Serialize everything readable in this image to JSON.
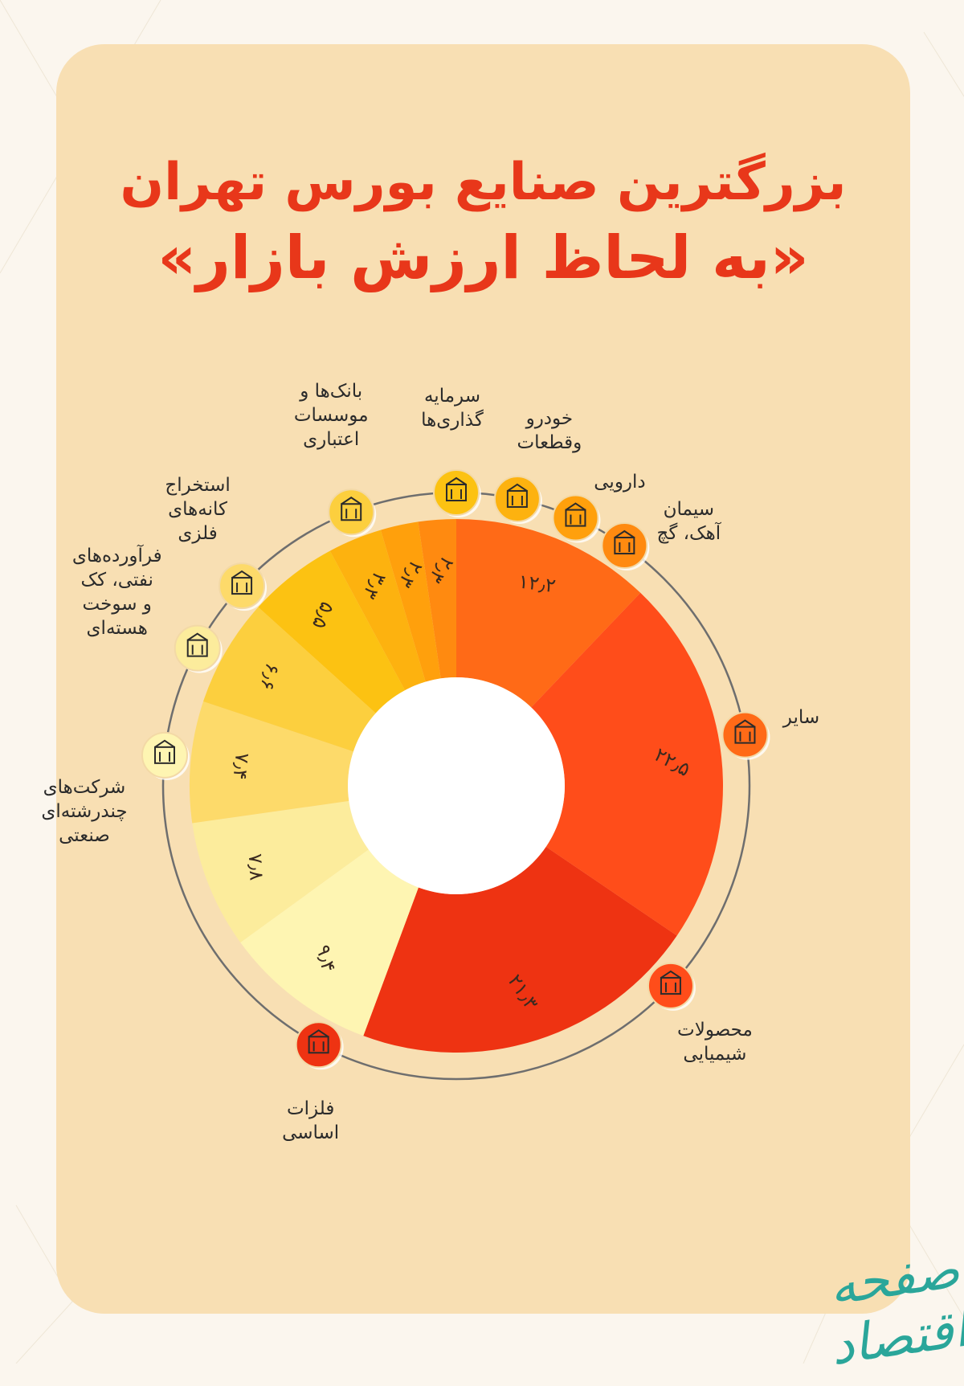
{
  "title": {
    "line1": "بزرگترین صنایع بورس تهران",
    "quote_open": "«",
    "line2": "به لحاظ ارزش بازار",
    "quote_close": "»"
  },
  "colors": {
    "title": "#e8371a",
    "card": "#f8dfb3",
    "ring": "#6e6e6e"
  },
  "chart_data": {
    "type": "pie",
    "donut": true,
    "unit": "percent",
    "slices": [
      {
        "label": "سایر",
        "value": 12.2,
        "value_text": "۱۲٫۲",
        "color": "#ff6a17",
        "icon": "other-icon"
      },
      {
        "label": "محصولات\nشیمیایی",
        "value": 22.5,
        "value_text": "۲۲٫۵",
        "color": "#ff4d1a",
        "icon": "chemical-flask-icon"
      },
      {
        "label": "فلزات\nاساسی",
        "value": 21.3,
        "value_text": "۲۱٫۳",
        "color": "#ee3312",
        "icon": "metal-bars-icon"
      },
      {
        "label": "شرکت‌های\nچندرشته‌ای\nصنعتی",
        "value": 9.4,
        "value_text": "۹٫۴",
        "color": "#fef5b2",
        "icon": "factory-icon"
      },
      {
        "label": "فرآورده‌های\nنفتی، کک\nو سوخت\nهسته‌ای",
        "value": 7.8,
        "value_text": "۷٫۸",
        "color": "#fcec9c",
        "icon": "oil-refinery-icon"
      },
      {
        "label": "استخراج\nکانه‌های\nفلزی",
        "value": 7.4,
        "value_text": "۷٫۴",
        "color": "#fdda6a",
        "icon": "mine-icon"
      },
      {
        "label": "بانک‌ها و\nموسسات\nاعتباری",
        "value": 6.6,
        "value_text": "۶٫۶",
        "color": "#fccf3e",
        "icon": "bank-icon"
      },
      {
        "label": "سرمایه\nگذاری‌ها",
        "value": 5.5,
        "value_text": "۵٫۵",
        "color": "#fcc212",
        "icon": "investment-icon"
      },
      {
        "label": "خودرو\nوقطعات",
        "value": 3.3,
        "value_text": "۳٫۳",
        "color": "#fdb20f",
        "icon": "car-icon"
      },
      {
        "label": "دارویی",
        "value": 2.3,
        "value_text": "۲٫۳",
        "color": "#ffa00c",
        "icon": "pharma-icon"
      },
      {
        "label": "سیمان\nآهک، گچ",
        "value": 2.3,
        "value_text": "۲٫۳",
        "color": "#ff8a10",
        "icon": "cement-icon"
      }
    ]
  },
  "brand": {
    "logo_text": "صفحه اقتصاد"
  }
}
